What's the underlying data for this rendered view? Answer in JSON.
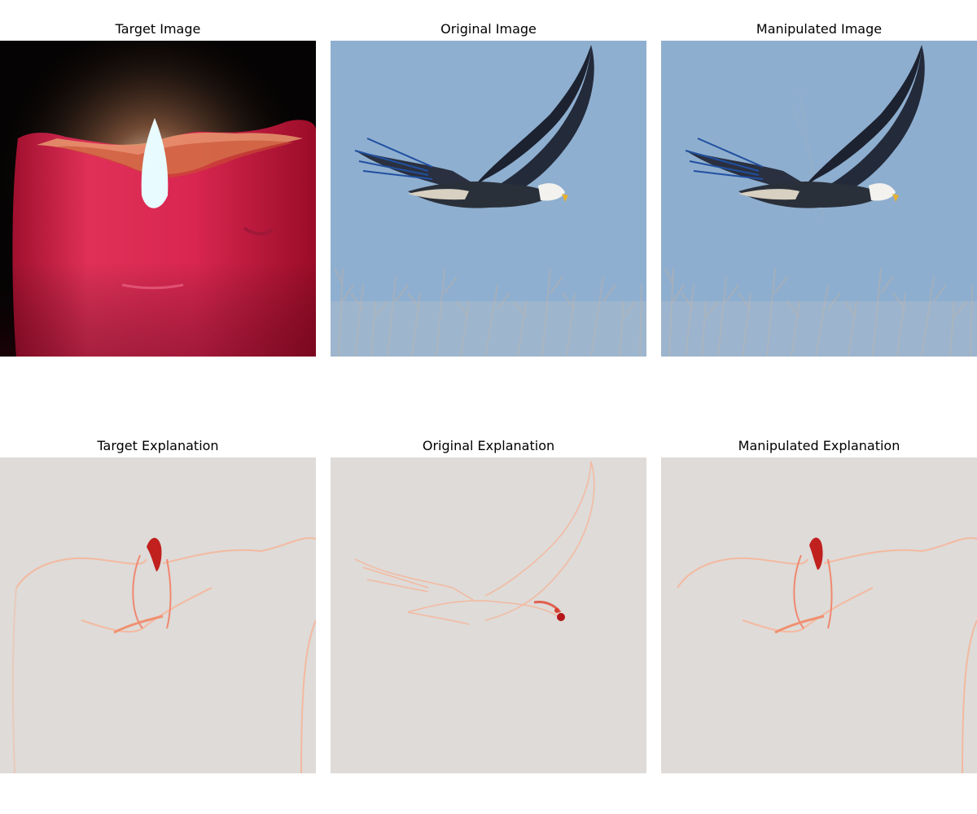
{
  "figure": {
    "panels": [
      {
        "id": "target-image",
        "title": "Target Image",
        "subject": "candle"
      },
      {
        "id": "original-image",
        "title": "Original Image",
        "subject": "bald-eagle"
      },
      {
        "id": "manipulated-image",
        "title": "Manipulated Image",
        "subject": "bald-eagle"
      },
      {
        "id": "target-explanation",
        "title": "Target Explanation",
        "subject": "candle-heatmap"
      },
      {
        "id": "original-explanation",
        "title": "Original Explanation",
        "subject": "eagle-heatmap"
      },
      {
        "id": "manipulated-explanation",
        "title": "Manipulated Explanation",
        "subject": "candle-heatmap"
      }
    ]
  },
  "colors": {
    "sky": "#8fafd0",
    "candle_wax": "#d8284e",
    "flame": "#e8fbff",
    "heatmap_background": "#dedbd8",
    "heatmap_line": "#f4b9a0",
    "heatmap_hot": "#b4161a"
  }
}
